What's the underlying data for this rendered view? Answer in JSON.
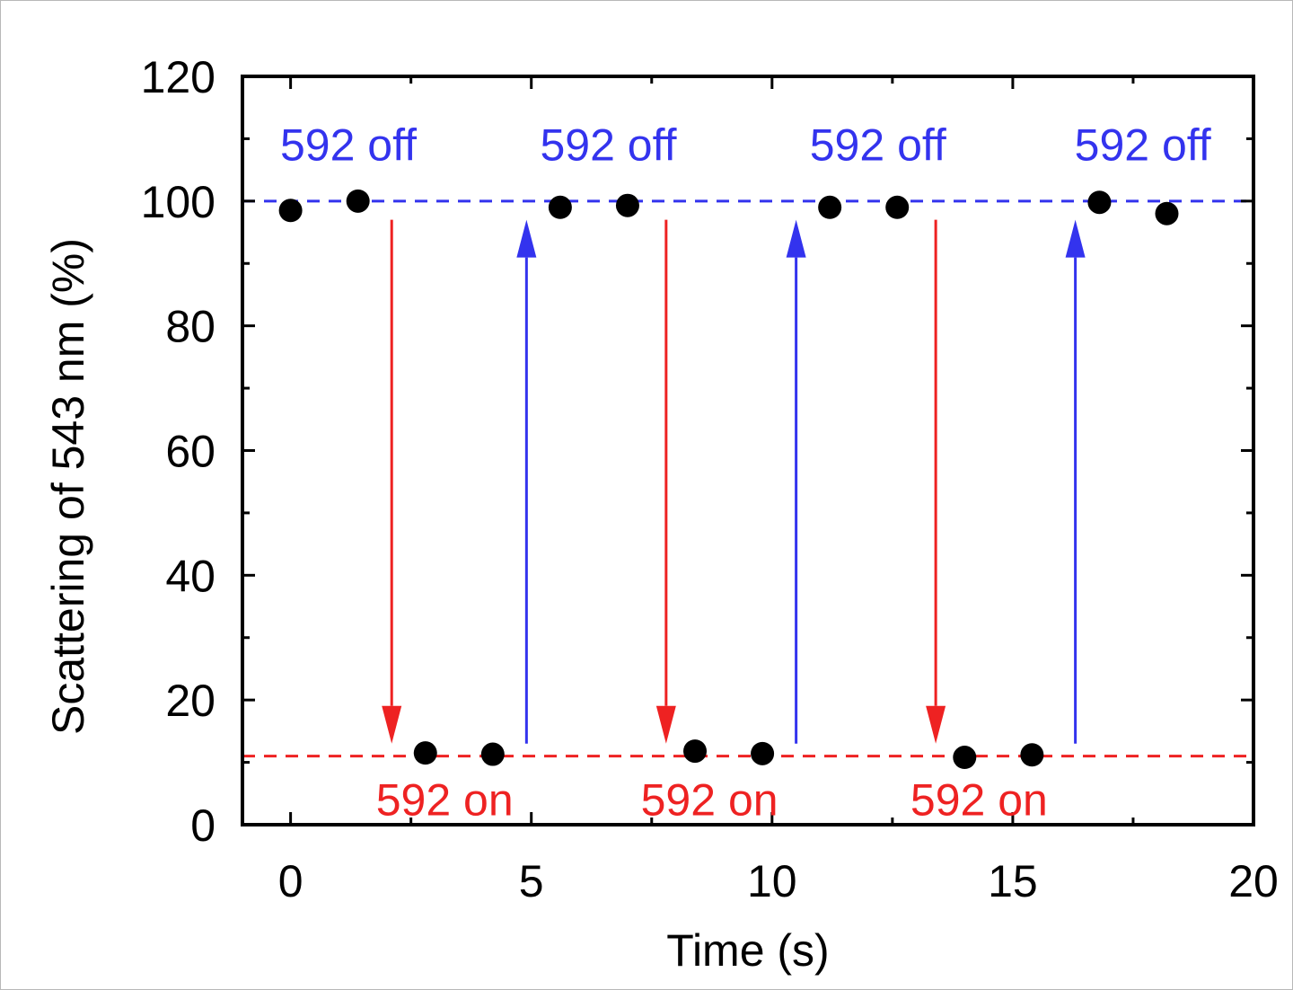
{
  "chart_data": {
    "type": "scatter",
    "xlabel": "Time (s)",
    "ylabel": "Scattering of 543 nm (%)",
    "xlim": [
      -1,
      20
    ],
    "ylim": [
      0,
      120
    ],
    "x_ticks": [
      0,
      5,
      10,
      15,
      20
    ],
    "y_ticks": [
      0,
      20,
      40,
      60,
      80,
      100,
      120
    ],
    "grid": false,
    "colors": {
      "points": "#000000",
      "off": "#3333ee",
      "on": "#ee2222",
      "axis": "#000000"
    },
    "series": [
      {
        "values": [
          {
            "x": 0,
            "y": 98.5
          },
          {
            "x": 1.4,
            "y": 100
          },
          {
            "x": 2.8,
            "y": 11.5
          },
          {
            "x": 4.2,
            "y": 11.3
          },
          {
            "x": 5.6,
            "y": 99
          },
          {
            "x": 7,
            "y": 99.3
          },
          {
            "x": 8.4,
            "y": 11.8
          },
          {
            "x": 9.8,
            "y": 11.4
          },
          {
            "x": 11.2,
            "y": 99
          },
          {
            "x": 12.6,
            "y": 99
          },
          {
            "x": 14,
            "y": 10.8
          },
          {
            "x": 15.4,
            "y": 11.2
          },
          {
            "x": 16.8,
            "y": 99.8
          },
          {
            "x": 18.2,
            "y": 98
          }
        ]
      }
    ],
    "reference_lines": [
      {
        "y": 100,
        "color": "#3333ee",
        "style": "dashed"
      },
      {
        "y": 11,
        "color": "#ee2222",
        "style": "dashed"
      }
    ],
    "arrows": [
      {
        "x": 2.1,
        "from": 97,
        "to": 13,
        "color": "#ee2222"
      },
      {
        "x": 4.9,
        "from": 13,
        "to": 97,
        "color": "#3333ee"
      },
      {
        "x": 7.8,
        "from": 97,
        "to": 13,
        "color": "#ee2222"
      },
      {
        "x": 10.5,
        "from": 13,
        "to": 97,
        "color": "#3333ee"
      },
      {
        "x": 13.4,
        "from": 97,
        "to": 13,
        "color": "#ee2222"
      },
      {
        "x": 16.3,
        "from": 13,
        "to": 97,
        "color": "#3333ee"
      }
    ],
    "annotations": [
      {
        "text": "592 off",
        "x": 1.2,
        "y": 106.5,
        "color": "#3333ee"
      },
      {
        "text": "592 off",
        "x": 6.6,
        "y": 106.5,
        "color": "#3333ee"
      },
      {
        "text": "592 off",
        "x": 12.2,
        "y": 106.5,
        "color": "#3333ee"
      },
      {
        "text": "592 off",
        "x": 17.7,
        "y": 106.5,
        "color": "#3333ee"
      },
      {
        "text": "592 on",
        "x": 3.2,
        "y": 1.5,
        "color": "#ee2222"
      },
      {
        "text": "592 on",
        "x": 8.7,
        "y": 1.5,
        "color": "#ee2222"
      },
      {
        "text": "592 on",
        "x": 14.3,
        "y": 1.5,
        "color": "#ee2222"
      }
    ]
  }
}
